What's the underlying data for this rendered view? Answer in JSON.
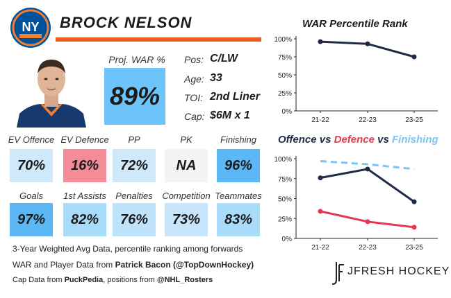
{
  "player": {
    "name": "BROCK NELSON",
    "logo_text": "NY"
  },
  "proj_war": {
    "label": "Proj. WAR %",
    "value": "89%",
    "color": "#6cc4fa"
  },
  "info": [
    {
      "label": "Pos:",
      "value": "C/LW"
    },
    {
      "label": "Age:",
      "value": "33"
    },
    {
      "label": "TOI:",
      "value": "2nd Liner"
    },
    {
      "label": "Cap:",
      "value": "$6M x 1"
    }
  ],
  "stats_row1": [
    {
      "label": "EV Offence",
      "value": "70%",
      "color": "#cfe9fb"
    },
    {
      "label": "EV Defence",
      "value": "16%",
      "color": "#f48b99"
    },
    {
      "label": "PP",
      "value": "72%",
      "color": "#cfe9fb"
    },
    {
      "label": "PK",
      "value": "NA",
      "color": "#f4f4f4"
    },
    {
      "label": "Finishing",
      "value": "96%",
      "color": "#5cb8f5"
    }
  ],
  "stats_row2": [
    {
      "label": "Goals",
      "value": "97%",
      "color": "#5cb8f5"
    },
    {
      "label": "1st Assists",
      "value": "82%",
      "color": "#a9dbfa"
    },
    {
      "label": "Penalties",
      "value": "76%",
      "color": "#bfe3fb"
    },
    {
      "label": "Competition",
      "value": "73%",
      "color": "#c7e6fb"
    },
    {
      "label": "Teammates",
      "value": "83%",
      "color": "#a9dbfa"
    }
  ],
  "footnotes": {
    "line1": "3-Year Weighted Avg Data, percentile ranking among forwards",
    "line2_prefix": "WAR and Player Data from ",
    "line2_bold": "Patrick Bacon (@TopDownHockey)",
    "line3_prefix": "Cap Data from ",
    "line3_bold1": "PuckPedia",
    "line3_mid": ", positions from ",
    "line3_bold2": "@NHL_Rosters"
  },
  "brand": {
    "name": "JFRESH HOCKEY"
  },
  "chart_data": [
    {
      "type": "line",
      "title": "WAR Percentile Rank",
      "categories": [
        "21-22",
        "22-23",
        "23-25"
      ],
      "ylim": [
        0,
        100
      ],
      "yticks": [
        "0%",
        "25%",
        "50%",
        "75%",
        "100%"
      ],
      "grid": false,
      "series": [
        {
          "values": [
            96,
            93,
            75
          ],
          "color": "#1f2a44",
          "dashed": false
        }
      ]
    },
    {
      "type": "line",
      "title_parts": [
        {
          "text": "Offence",
          "color": "#1f2a44"
        },
        {
          "text": " vs ",
          "color": "#1f2a44"
        },
        {
          "text": "Defence",
          "color": "#e63950"
        },
        {
          "text": " vs ",
          "color": "#1f2a44"
        },
        {
          "text": "Finishing",
          "color": "#7cc4f4"
        }
      ],
      "categories": [
        "21-22",
        "22-23",
        "23-25"
      ],
      "ylim": [
        0,
        100
      ],
      "yticks": [
        "0%",
        "25%",
        "50%",
        "75%",
        "100%"
      ],
      "grid": false,
      "series": [
        {
          "values": [
            76,
            87,
            46
          ],
          "color": "#1f2a44",
          "dashed": false
        },
        {
          "values": [
            34,
            21,
            14
          ],
          "color": "#e63950",
          "dashed": false
        },
        {
          "values": [
            97,
            93,
            87
          ],
          "color": "#7cc4f4",
          "dashed": true
        }
      ]
    }
  ]
}
